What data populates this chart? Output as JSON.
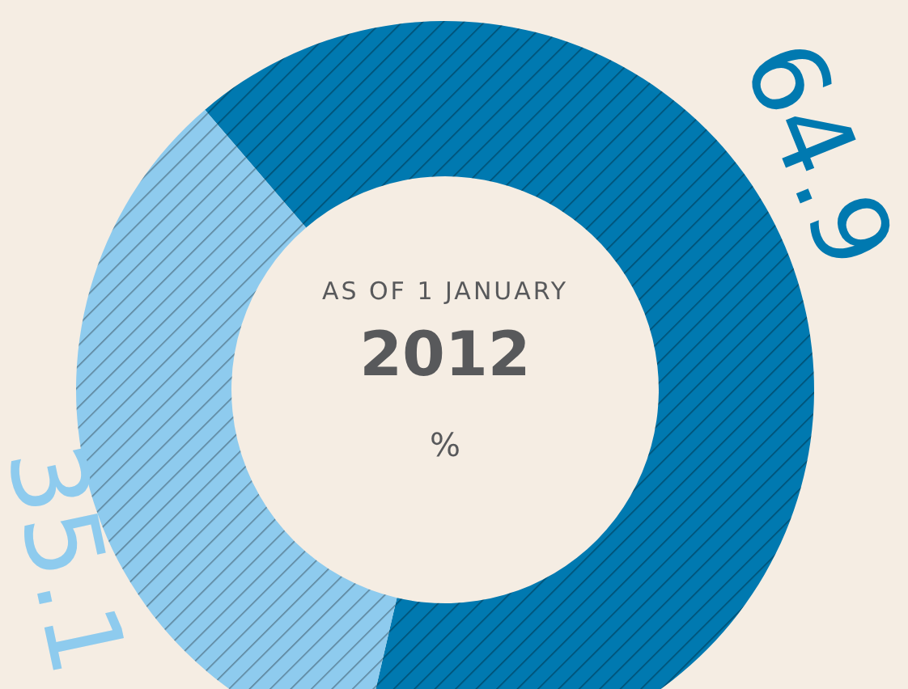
{
  "chart_data": {
    "type": "donut",
    "title": "2012",
    "subtitle": "AS OF 1 JANUARY",
    "annotations": [
      "%"
    ],
    "categories": [
      null,
      null
    ],
    "values": [
      64.9,
      35.1
    ],
    "colors": [
      "#0079b0",
      "#8ecbee"
    ],
    "data_labels": true
  }
}
